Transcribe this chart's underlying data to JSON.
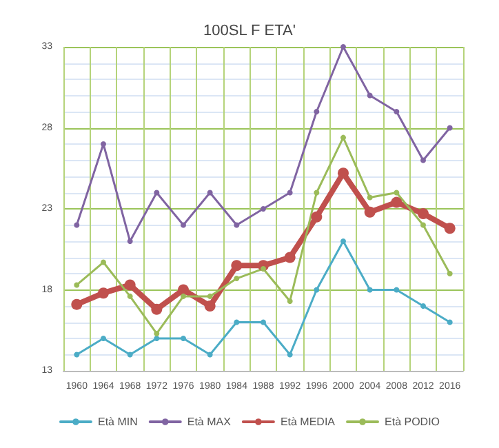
{
  "chart_data": {
    "type": "line",
    "title": "100SL F ETA'",
    "categories": [
      "1960",
      "1964",
      "1968",
      "1972",
      "1976",
      "1980",
      "1984",
      "1988",
      "1992",
      "1996",
      "2000",
      "2004",
      "2008",
      "2012",
      "2016"
    ],
    "series": [
      {
        "name": "Età MIN",
        "color": "#4bacc6",
        "values": [
          14,
          15,
          14,
          15,
          15,
          14,
          16,
          16,
          14,
          18,
          21,
          18,
          18,
          17,
          16
        ]
      },
      {
        "name": "Età MAX",
        "color": "#8064a2",
        "values": [
          22,
          27,
          21,
          24,
          22,
          24,
          22,
          23,
          24,
          29,
          33,
          30,
          29,
          26,
          28
        ]
      },
      {
        "name": "Età MEDIA",
        "color": "#c0504d",
        "values": [
          17.1,
          17.8,
          18.3,
          16.8,
          18,
          17,
          19.5,
          19.5,
          20,
          22.5,
          25.2,
          22.8,
          23.4,
          22.7,
          21.8
        ]
      },
      {
        "name": "Età PODIO",
        "color": "#9bbb59",
        "values": [
          18.3,
          19.7,
          17.6,
          15.3,
          17.6,
          17.6,
          18.7,
          19.3,
          17.3,
          24,
          27.4,
          23.7,
          24,
          22,
          19
        ]
      }
    ],
    "ylim": [
      13,
      33
    ],
    "yticks": [
      13,
      18,
      23,
      28,
      33
    ],
    "grid": true,
    "legend": "bottom",
    "marker": "circle",
    "line_style": "solid"
  }
}
